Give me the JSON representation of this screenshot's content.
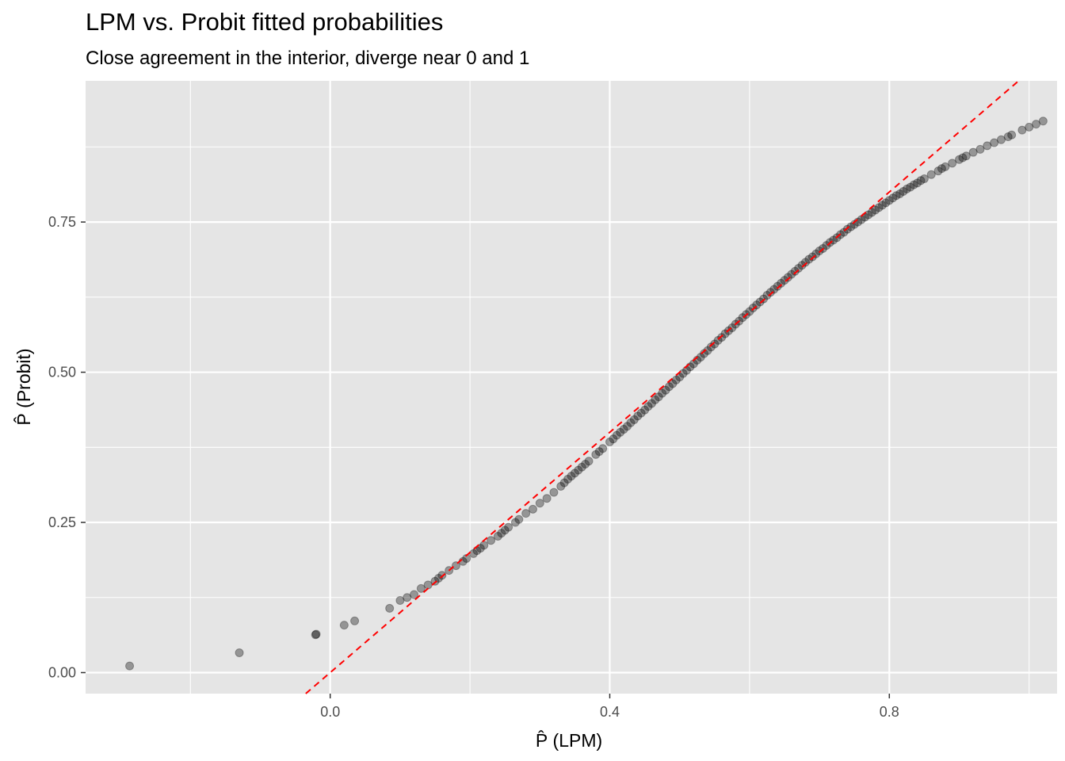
{
  "chart_data": {
    "type": "scatter",
    "title": "LPM vs. Probit fitted probabilities",
    "subtitle": "Close agreement in the interior, diverge near 0 and 1",
    "xlabel": "P̂ (LPM)",
    "ylabel": "P̂ (Probit)",
    "xlim": [
      -0.35,
      1.04
    ],
    "ylim": [
      -0.035,
      0.985
    ],
    "x_ticks": [
      0.0,
      0.4,
      0.8
    ],
    "x_tick_labels": [
      "0.0",
      "0.4",
      "0.8"
    ],
    "y_ticks": [
      0.0,
      0.25,
      0.5,
      0.75
    ],
    "y_tick_labels": [
      "0.00",
      "0.25",
      "0.50",
      "0.75"
    ],
    "grid": true,
    "point_color": "#000000",
    "point_alpha": 0.35,
    "reference_line": {
      "type": "abline",
      "slope": 1,
      "intercept": 0,
      "color": "#ff0000",
      "style": "dashed"
    },
    "panel_background": "#e5e5e5",
    "grid_color": "#ffffff",
    "points": {
      "x": [
        -0.287,
        -0.13,
        -0.02,
        -0.021,
        0.02,
        0.035,
        0.085,
        0.1,
        0.11,
        0.12,
        0.13,
        0.14,
        0.15,
        0.155,
        0.16,
        0.17,
        0.18,
        0.19,
        0.195,
        0.205,
        0.21,
        0.215,
        0.22,
        0.23,
        0.24,
        0.245,
        0.25,
        0.255,
        0.265,
        0.27,
        0.28,
        0.29,
        0.3,
        0.31,
        0.32,
        0.33,
        0.335,
        0.34,
        0.345,
        0.35,
        0.355,
        0.36,
        0.365,
        0.37,
        0.38,
        0.385,
        0.39,
        0.4,
        0.405,
        0.41,
        0.415,
        0.42,
        0.425,
        0.43,
        0.435,
        0.44,
        0.445,
        0.45,
        0.455,
        0.46,
        0.465,
        0.47,
        0.475,
        0.48,
        0.485,
        0.49,
        0.495,
        0.5,
        0.505,
        0.51,
        0.515,
        0.52,
        0.525,
        0.53,
        0.535,
        0.54,
        0.545,
        0.55,
        0.555,
        0.56,
        0.565,
        0.57,
        0.575,
        0.58,
        0.585,
        0.59,
        0.595,
        0.6,
        0.605,
        0.61,
        0.615,
        0.62,
        0.625,
        0.63,
        0.635,
        0.64,
        0.645,
        0.65,
        0.655,
        0.66,
        0.665,
        0.67,
        0.675,
        0.68,
        0.685,
        0.69,
        0.695,
        0.7,
        0.705,
        0.71,
        0.715,
        0.72,
        0.725,
        0.73,
        0.735,
        0.74,
        0.745,
        0.75,
        0.755,
        0.76,
        0.765,
        0.77,
        0.775,
        0.78,
        0.785,
        0.79,
        0.795,
        0.8,
        0.805,
        0.81,
        0.815,
        0.82,
        0.825,
        0.83,
        0.835,
        0.84,
        0.845,
        0.85,
        0.86,
        0.87,
        0.875,
        0.88,
        0.89,
        0.9,
        0.905,
        0.91,
        0.92,
        0.93,
        0.94,
        0.95,
        0.96,
        0.97,
        0.975,
        0.99,
        1.0,
        1.01,
        1.02
      ],
      "y": [
        0.011,
        0.033,
        0.064,
        0.063,
        0.079,
        0.086,
        0.107,
        0.12,
        0.125,
        0.13,
        0.14,
        0.146,
        0.152,
        0.157,
        0.162,
        0.17,
        0.178,
        0.185,
        0.19,
        0.198,
        0.203,
        0.207,
        0.212,
        0.22,
        0.227,
        0.232,
        0.237,
        0.242,
        0.25,
        0.255,
        0.265,
        0.272,
        0.282,
        0.29,
        0.3,
        0.31,
        0.316,
        0.322,
        0.327,
        0.332,
        0.337,
        0.342,
        0.347,
        0.352,
        0.363,
        0.368,
        0.373,
        0.384,
        0.389,
        0.395,
        0.4,
        0.405,
        0.41,
        0.416,
        0.421,
        0.427,
        0.432,
        0.437,
        0.443,
        0.448,
        0.454,
        0.459,
        0.465,
        0.47,
        0.476,
        0.481,
        0.487,
        0.492,
        0.498,
        0.503,
        0.509,
        0.514,
        0.52,
        0.525,
        0.531,
        0.536,
        0.542,
        0.547,
        0.553,
        0.558,
        0.564,
        0.569,
        0.574,
        0.58,
        0.585,
        0.591,
        0.596,
        0.601,
        0.607,
        0.612,
        0.617,
        0.622,
        0.628,
        0.633,
        0.638,
        0.643,
        0.648,
        0.653,
        0.658,
        0.663,
        0.668,
        0.673,
        0.678,
        0.683,
        0.688,
        0.692,
        0.697,
        0.702,
        0.706,
        0.711,
        0.716,
        0.72,
        0.724,
        0.729,
        0.733,
        0.738,
        0.742,
        0.746,
        0.75,
        0.754,
        0.758,
        0.762,
        0.766,
        0.77,
        0.774,
        0.778,
        0.782,
        0.786,
        0.79,
        0.794,
        0.797,
        0.801,
        0.805,
        0.808,
        0.812,
        0.815,
        0.819,
        0.822,
        0.829,
        0.835,
        0.839,
        0.842,
        0.848,
        0.854,
        0.857,
        0.86,
        0.866,
        0.871,
        0.877,
        0.882,
        0.887,
        0.892,
        0.895,
        0.903,
        0.908,
        0.913,
        0.918
      ]
    }
  }
}
